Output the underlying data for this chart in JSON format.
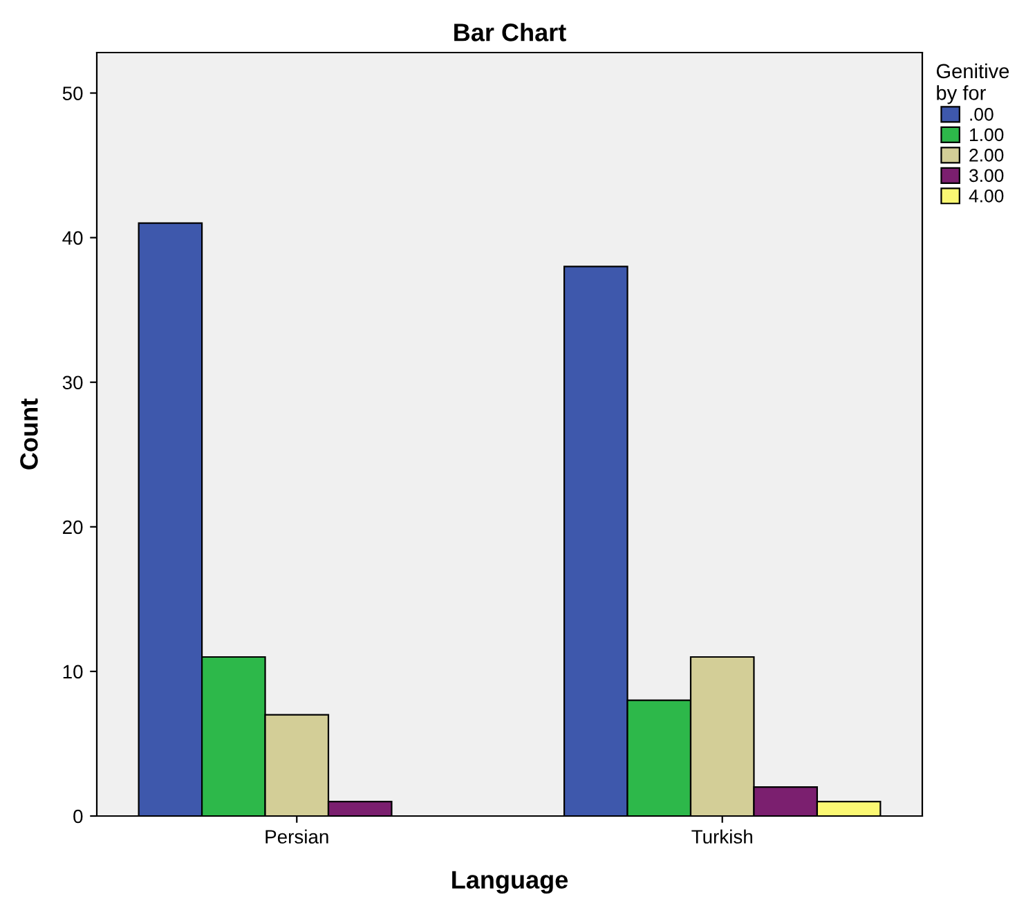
{
  "chart_data": {
    "type": "bar",
    "title": "Bar Chart",
    "xlabel": "Language",
    "ylabel": "Count",
    "legend_title": "Genitive\nby for",
    "categories": [
      "Persian",
      "Turkish"
    ],
    "series": [
      {
        "name": ".00",
        "color": "#3e58ac",
        "values": [
          41,
          38
        ]
      },
      {
        "name": "1.00",
        "color": "#2db84a",
        "values": [
          11,
          8
        ]
      },
      {
        "name": "2.00",
        "color": "#d3ce97",
        "values": [
          7,
          11
        ]
      },
      {
        "name": "3.00",
        "color": "#7b1f6f",
        "values": [
          1,
          2
        ]
      },
      {
        "name": "4.00",
        "color": "#fbf873",
        "values": [
          null,
          1
        ]
      }
    ],
    "ylim": [
      0,
      52.8
    ],
    "yticks": [
      0,
      10,
      20,
      30,
      40,
      50
    ],
    "grid": false,
    "legend": "top right"
  }
}
